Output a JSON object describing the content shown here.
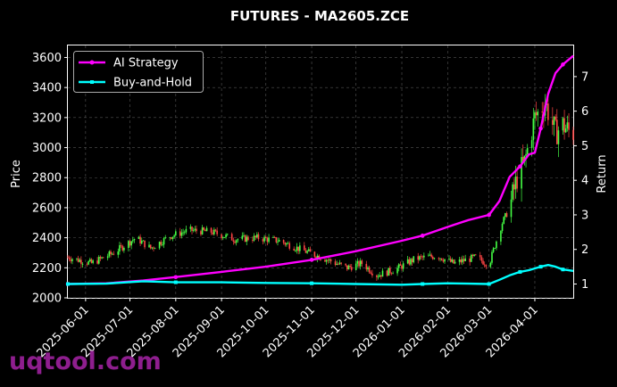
{
  "chart_data": {
    "type": "line",
    "title": "FUTURES - MA2605.ZCE",
    "xlabel": "",
    "ylabel": "Price",
    "ylabel_right": "Return",
    "ylim": [
      2000,
      3680
    ],
    "ylim_right": [
      0.6,
      7.9
    ],
    "xlim": [
      "2025-05-20",
      "2026-04-27"
    ],
    "x_ticks": [
      "2025-06-01",
      "2025-07-01",
      "2025-08-01",
      "2025-09-01",
      "2025-10-01",
      "2025-11-01",
      "2025-12-01",
      "2026-01-01",
      "2026-02-01",
      "2026-03-01",
      "2026-04-01"
    ],
    "y_ticks": [
      2000,
      2200,
      2400,
      2600,
      2800,
      3000,
      3200,
      3400,
      3600
    ],
    "y_ticks_right": [
      1,
      2,
      3,
      4,
      5,
      6,
      7
    ],
    "grid": true,
    "legend": "top-left",
    "candles": {
      "dates": [
        "2025-05-20",
        "2025-06-05",
        "2025-06-20",
        "2025-07-05",
        "2025-07-15",
        "2025-07-28",
        "2025-08-10",
        "2025-08-25",
        "2025-09-10",
        "2025-09-25",
        "2025-10-10",
        "2025-10-25",
        "2025-11-10",
        "2025-11-25",
        "2025-12-05",
        "2025-12-15",
        "2025-12-28",
        "2026-01-10",
        "2026-01-25",
        "2026-02-05",
        "2026-02-20",
        "2026-03-01",
        "2026-03-05",
        "2026-03-10",
        "2026-03-15",
        "2026-03-20",
        "2026-03-25",
        "2026-04-01",
        "2026-04-08",
        "2026-04-15",
        "2026-04-20",
        "2026-04-25"
      ],
      "close": [
        2270,
        2230,
        2300,
        2400,
        2330,
        2410,
        2450,
        2440,
        2390,
        2400,
        2380,
        2320,
        2260,
        2200,
        2230,
        2150,
        2190,
        2260,
        2280,
        2230,
        2270,
        2220,
        2350,
        2500,
        2600,
        2800,
        2900,
        3200,
        3300,
        3100,
        3150,
        3100
      ],
      "up_color": "#44ff44",
      "down_color": "#ff4444"
    },
    "series": [
      {
        "name": "AI Strategy",
        "color": "#ff00ff",
        "x": [
          "2025-05-20",
          "2025-06-15",
          "2025-07-10",
          "2025-08-01",
          "2025-09-01",
          "2025-10-01",
          "2025-11-01",
          "2025-12-01",
          "2026-01-01",
          "2026-01-15",
          "2026-02-01",
          "2026-02-15",
          "2026-03-01",
          "2026-03-08",
          "2026-03-15",
          "2026-03-22",
          "2026-03-28",
          "2026-04-01",
          "2026-04-05",
          "2026-04-10",
          "2026-04-15",
          "2026-04-20",
          "2026-04-27"
        ],
        "values": [
          1.0,
          1.02,
          1.1,
          1.2,
          1.35,
          1.5,
          1.7,
          1.95,
          2.25,
          2.4,
          2.65,
          2.85,
          3.0,
          3.4,
          4.1,
          4.4,
          4.75,
          4.8,
          5.5,
          6.5,
          7.1,
          7.35,
          7.6
        ]
      },
      {
        "name": "Buy-and-Hold",
        "color": "#00ffff",
        "x": [
          "2025-05-20",
          "2025-06-15",
          "2025-07-10",
          "2025-08-01",
          "2025-09-01",
          "2025-10-01",
          "2025-11-01",
          "2025-12-01",
          "2026-01-01",
          "2026-01-15",
          "2026-02-01",
          "2026-02-15",
          "2026-03-01",
          "2026-03-08",
          "2026-03-15",
          "2026-03-22",
          "2026-03-28",
          "2026-04-01",
          "2026-04-05",
          "2026-04-10",
          "2026-04-15",
          "2026-04-20",
          "2026-04-27"
        ],
        "values": [
          1.0,
          1.01,
          1.08,
          1.05,
          1.05,
          1.03,
          1.02,
          1.0,
          0.98,
          1.0,
          1.02,
          1.01,
          1.0,
          1.12,
          1.25,
          1.35,
          1.4,
          1.45,
          1.5,
          1.55,
          1.5,
          1.42,
          1.38
        ]
      }
    ]
  },
  "watermark": {
    "text": "uqtool.com",
    "color": "#8e1e8e"
  }
}
